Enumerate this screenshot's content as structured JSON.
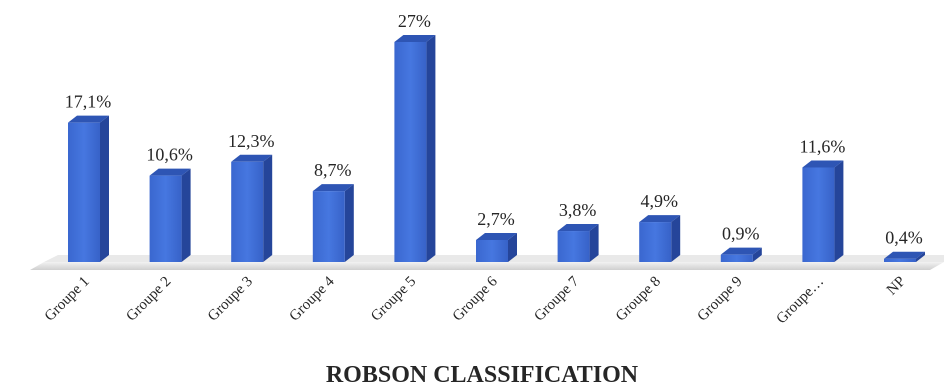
{
  "chart_data": {
    "type": "bar",
    "title": "ROBSON CLASSIFICATION",
    "xlabel": "",
    "ylabel": "",
    "categories": [
      "Groupe 1",
      "Groupe 2",
      "Groupe 3",
      "Groupe 4",
      "Groupe 5",
      "Groupe 6",
      "Groupe 7",
      "Groupe 8",
      "Groupe 9",
      "Groupe…",
      "NP"
    ],
    "values": [
      17.1,
      10.6,
      12.3,
      8.7,
      27,
      2.7,
      3.8,
      4.9,
      0.9,
      11.6,
      0.4
    ],
    "data_labels": [
      "17,1%",
      "10,6%",
      "12,3%",
      "8,7%",
      "27%",
      "2,7%",
      "3,8%",
      "4,9%",
      "0,9%",
      "11,6%",
      "0,4%"
    ],
    "ylim": [
      0,
      27
    ],
    "grid": false,
    "legend": "none",
    "colors": {
      "bar_front": "#3f6fd8",
      "bar_side": "#25459a",
      "bar_top": "#2e55b4",
      "floor": "#d6d6d6",
      "text": "#262626"
    }
  }
}
